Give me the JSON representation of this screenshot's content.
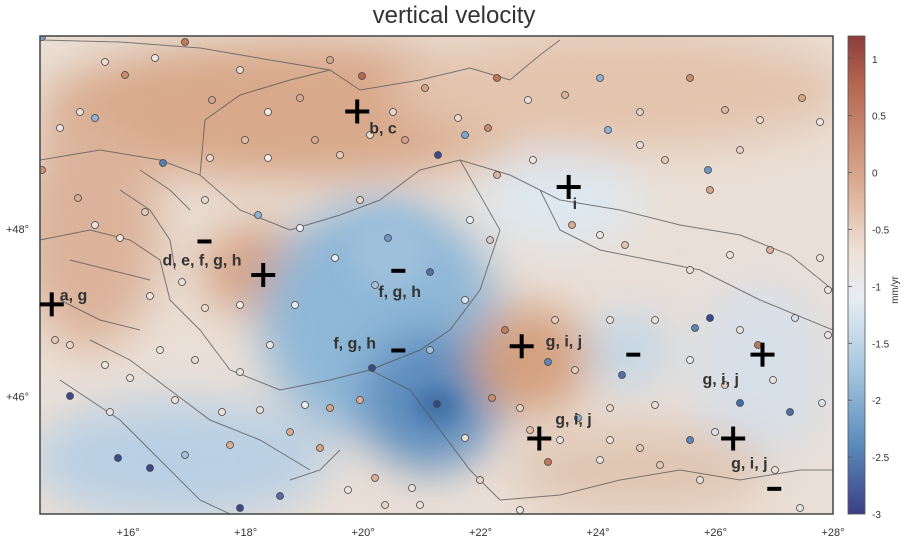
{
  "title": "vertical velocity",
  "colorbar": {
    "unit": "mm/yr",
    "ticks": [
      "1",
      "0.5",
      "0",
      "-0.5",
      "-1",
      "-1.5",
      "-2",
      "-2.5",
      "-3"
    ],
    "max": 1.2,
    "min": -3,
    "stops": [
      "#8c3c3c",
      "#c07a5a",
      "#e2c2aa",
      "#edf0f3",
      "#a6c6df",
      "#3f6fa6",
      "#3a3f86"
    ]
  },
  "axes": {
    "x_ticks": [
      "+16°",
      "+18°",
      "+20°",
      "+22°",
      "+24°",
      "+26°",
      "+28°"
    ],
    "y_ticks": [
      "+48°",
      "+46°"
    ]
  },
  "markers": [
    {
      "symbol": "+",
      "label": "b, c",
      "lon": 19.9,
      "lat": 49.4
    },
    {
      "symbol": "+",
      "label": "i",
      "lon": 23.5,
      "lat": 48.5
    },
    {
      "symbol": "−",
      "label": "d, e, f, g, h",
      "lon": 17.3,
      "lat": 47.85
    },
    {
      "symbol": "+",
      "label": "",
      "lon": 18.3,
      "lat": 47.45
    },
    {
      "symbol": "+",
      "label": "a, g",
      "lon": 14.7,
      "lat": 47.1
    },
    {
      "symbol": "−",
      "label": "f, g, h",
      "lon": 20.6,
      "lat": 47.5
    },
    {
      "symbol": "−",
      "label": "f, g, h",
      "lon": 20.6,
      "lat": 46.55
    },
    {
      "symbol": "+",
      "label": "g, i, j",
      "lon": 22.7,
      "lat": 46.6
    },
    {
      "symbol": "−",
      "label": "",
      "lon": 24.6,
      "lat": 46.5
    },
    {
      "symbol": "+",
      "label": "g, i, j",
      "lon": 26.8,
      "lat": 46.5
    },
    {
      "symbol": "+",
      "label": "g, i, j",
      "lon": 23.0,
      "lat": 45.5
    },
    {
      "symbol": "+",
      "label": "g, i, j",
      "lon": 26.3,
      "lat": 45.5
    },
    {
      "symbol": "−",
      "label": "",
      "lon": 27.0,
      "lat": 44.9
    }
  ]
}
